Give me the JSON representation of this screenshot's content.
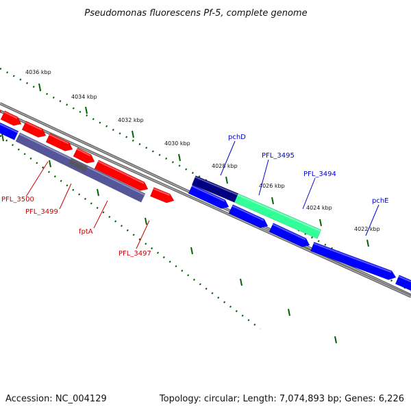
{
  "title": "Pseudomonas fluorescens Pf-5, complete genome",
  "footer": {
    "accession": "Accession: NC_004129",
    "topology": "Topology: circular; Length: 7,074,893 bp; Genes: 6,226"
  },
  "colors": {
    "forward_gene": "#ff0000",
    "reverse_gene": "#0000ff",
    "highlight_gene": "#33ff99",
    "dark_gene": "#000080",
    "purple_gene": "#555599",
    "backbone": "#888888",
    "ticks": "#006400",
    "forward_label": "#cc0000",
    "reverse_label": "#0000cc"
  },
  "ticks": [
    {
      "label": "4036 kbp"
    },
    {
      "label": "4034 kbp"
    },
    {
      "label": "4032 kbp"
    },
    {
      "label": "4030 kbp"
    },
    {
      "label": "4028 kbp"
    },
    {
      "label": "4026 kbp"
    },
    {
      "label": "4024 kbp"
    },
    {
      "label": "4022 kbp"
    }
  ],
  "gene_labels": {
    "forward": [
      "PFL_3500",
      "PFL_3499",
      "fptA",
      "PFL_3497"
    ],
    "reverse": [
      "pchD",
      "PFL_3495",
      "PFL_3494",
      "pchE"
    ]
  }
}
